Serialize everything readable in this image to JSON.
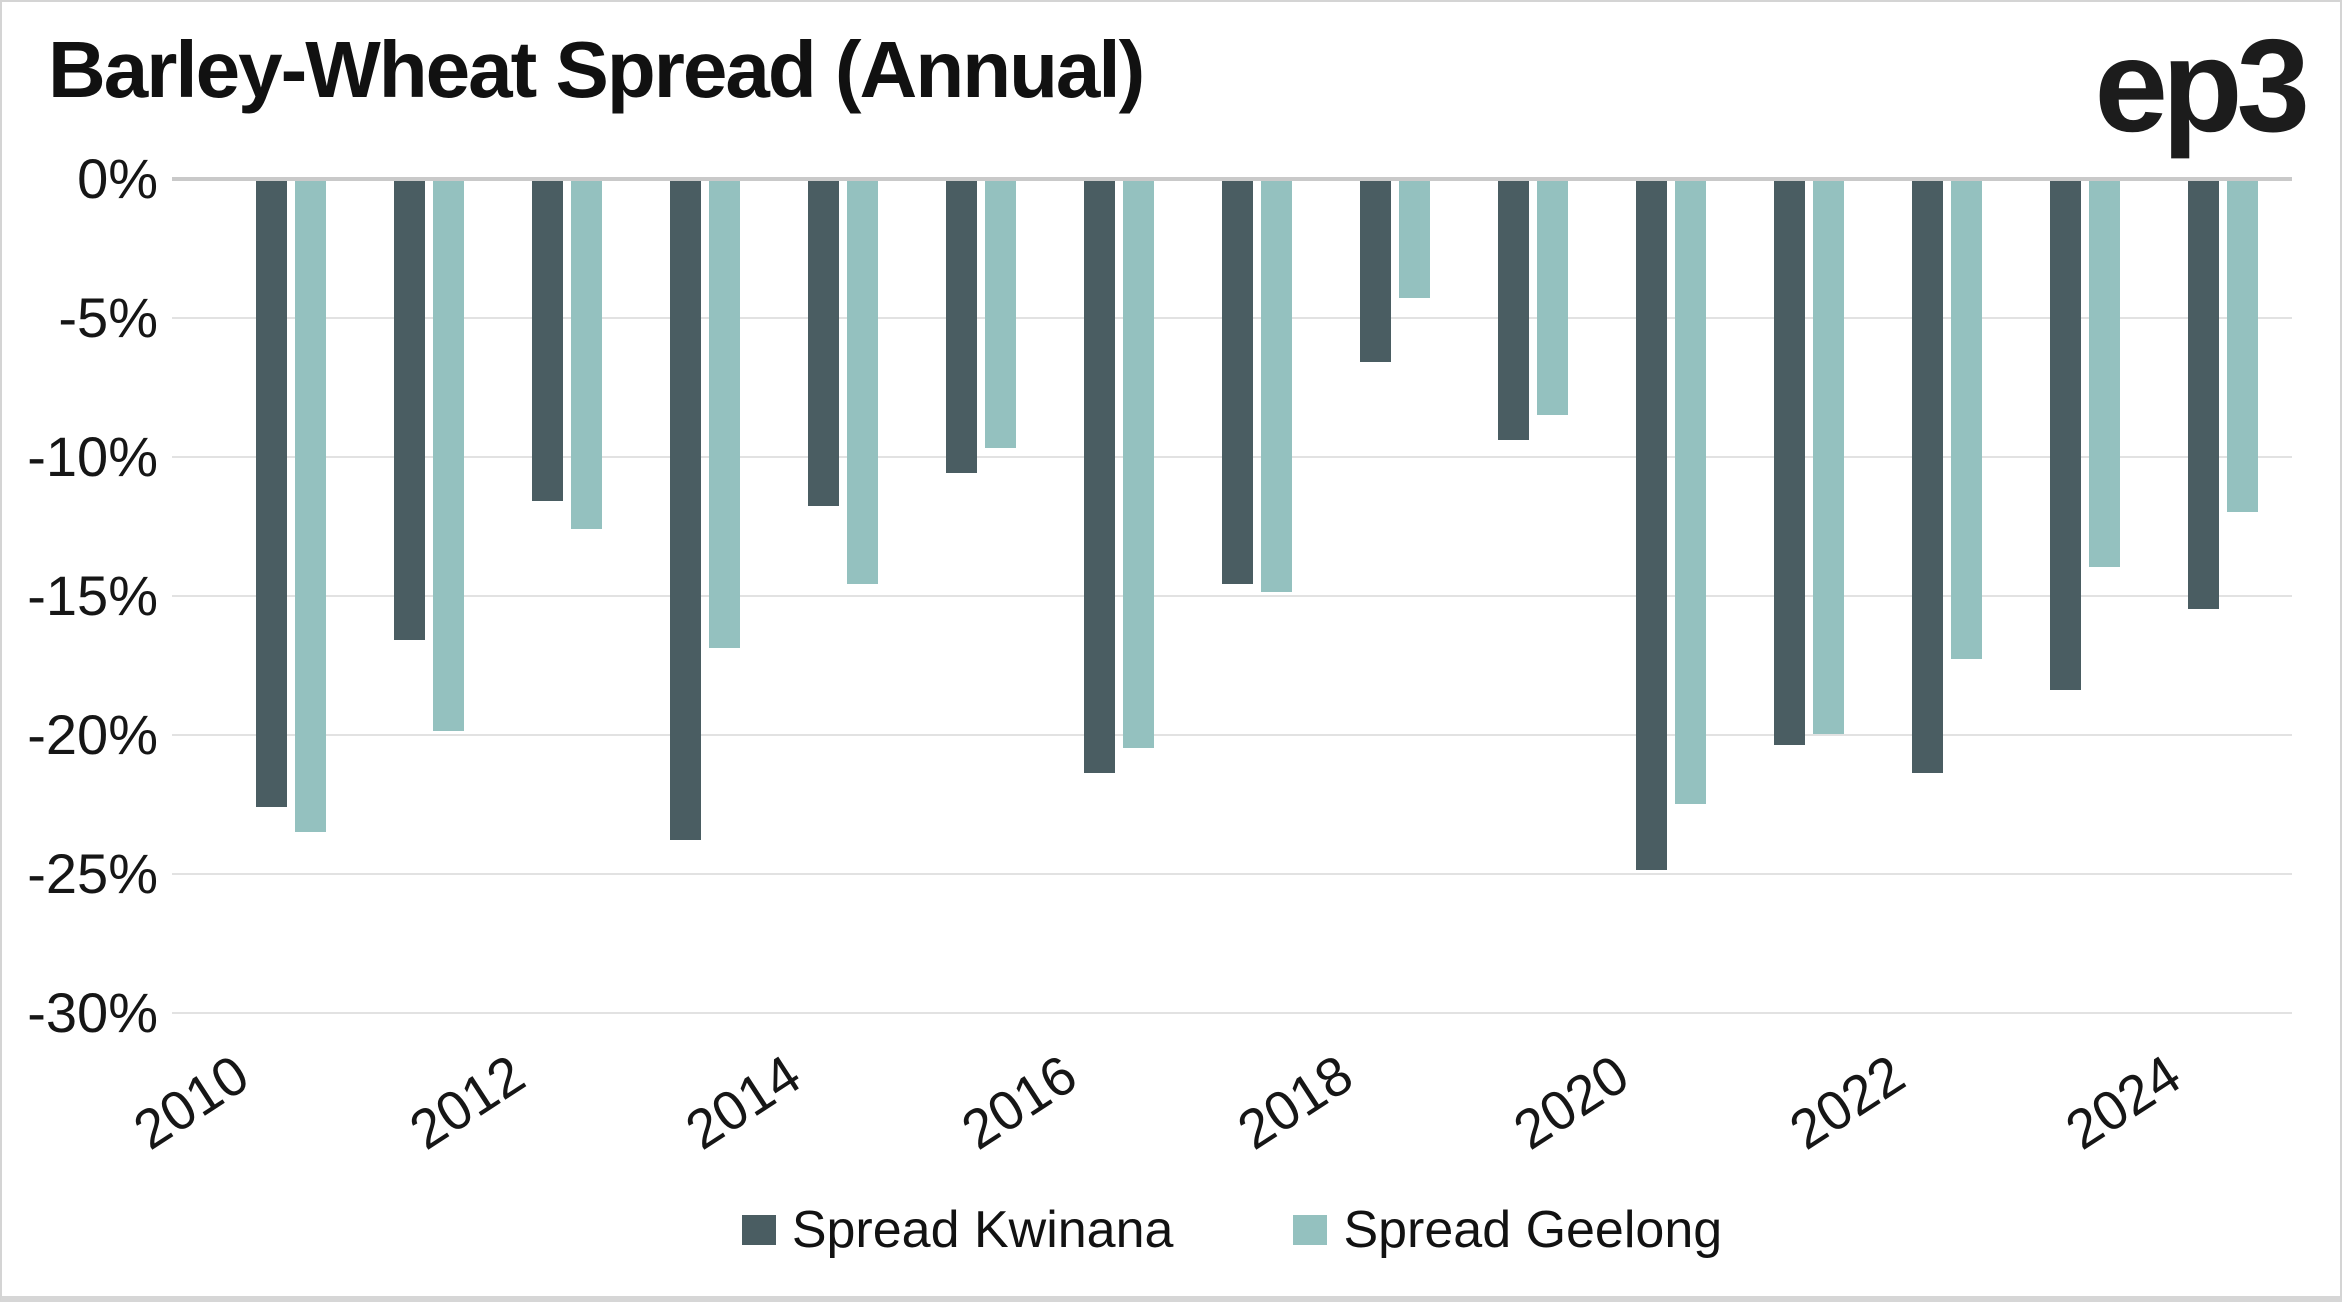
{
  "header": {
    "title": "Barley-Wheat Spread (Annual)",
    "logo_text": "ep3"
  },
  "colors": {
    "kwinana": "#4a5d62",
    "geelong": "#94c1bf",
    "gridline": "#e2e2e2",
    "zero_line": "#c9c9c9",
    "text": "#161616"
  },
  "legend": {
    "items": [
      {
        "label": "Spread Kwinana",
        "color": "#4a5d62"
      },
      {
        "label": "Spread Geelong",
        "color": "#94c1bf"
      }
    ]
  },
  "chart_data": {
    "type": "bar",
    "title": "Barley-Wheat Spread (Annual)",
    "categories": [
      2010,
      2011,
      2012,
      2013,
      2014,
      2015,
      2016,
      2017,
      2018,
      2019,
      2020,
      2021,
      2022,
      2023,
      2024
    ],
    "x_axis_labeled_years": [
      2010,
      2012,
      2014,
      2016,
      2018,
      2020,
      2022,
      2024
    ],
    "series": [
      {
        "name": "Spread Kwinana",
        "color": "#4a5d62",
        "values": [
          -22.5,
          -16.5,
          -11.5,
          -23.7,
          -11.7,
          -10.5,
          -21.3,
          -14.5,
          -6.5,
          -9.3,
          -24.8,
          -20.3,
          -21.3,
          -18.3,
          -15.4
        ]
      },
      {
        "name": "Spread Geelong",
        "color": "#94c1bf",
        "values": [
          -23.4,
          -19.8,
          -12.5,
          -16.8,
          -14.5,
          -9.6,
          -20.4,
          -14.8,
          -4.2,
          -8.4,
          -22.4,
          -19.9,
          -17.2,
          -13.9,
          -11.9
        ]
      }
    ],
    "y_ticks": [
      {
        "value": 0,
        "label": "0%"
      },
      {
        "value": -5,
        "label": "-5%"
      },
      {
        "value": -10,
        "label": "-10%"
      },
      {
        "value": -15,
        "label": "-15%"
      },
      {
        "value": -20,
        "label": "-20%"
      },
      {
        "value": -25,
        "label": "-25%"
      },
      {
        "value": -30,
        "label": "-30%"
      }
    ],
    "ylim": [
      -30,
      0
    ],
    "unit": "%",
    "grid": true,
    "legend_position": "bottom"
  }
}
